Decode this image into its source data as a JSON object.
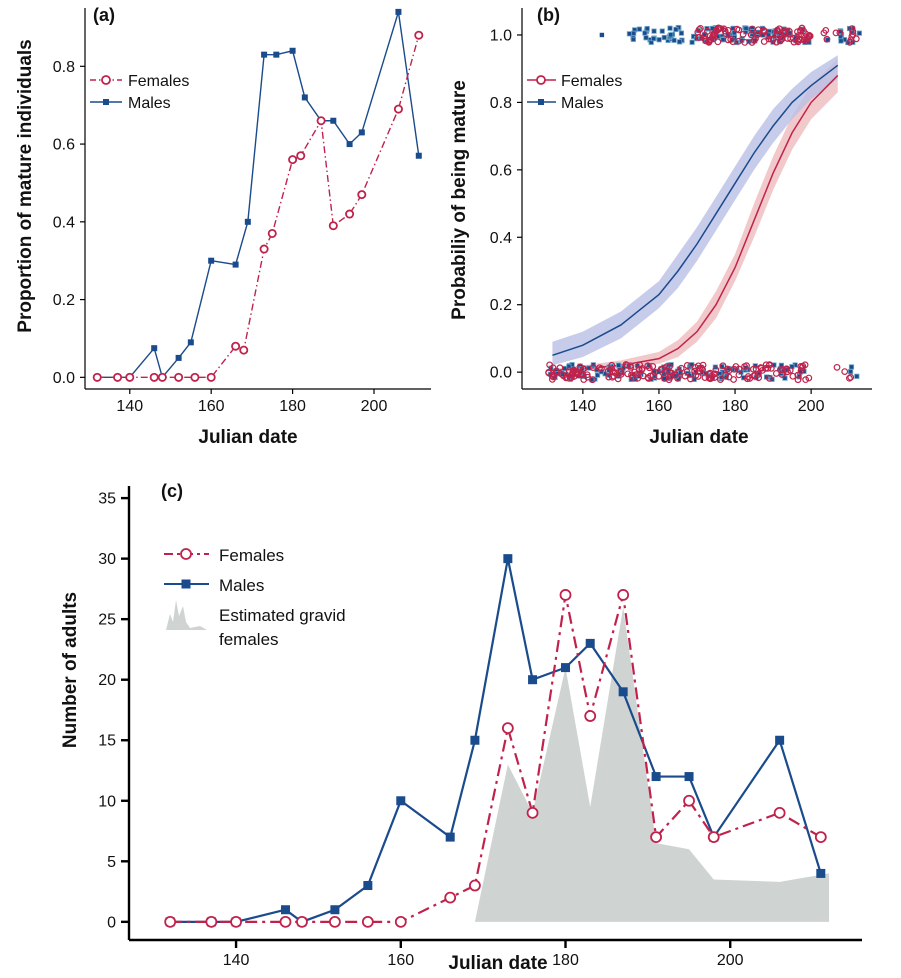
{
  "colors": {
    "females": "#c0224c",
    "males": "#1a4b8c",
    "gravid": "#cfd4d3",
    "males_ci": "#b9bfe6",
    "females_ci": "#efbcbe",
    "males_jitter": "#6fa8c8"
  },
  "chart_data": [
    {
      "panel": "(a)",
      "type": "line",
      "xlabel": "Julian date",
      "ylabel": "Proportion of mature individuals",
      "xlim": [
        129,
        214
      ],
      "ylim": [
        -0.03,
        0.95
      ],
      "xticks": [
        140,
        160,
        180,
        200
      ],
      "yticks": [
        "0.0",
        "0.2",
        "0.4",
        "0.6",
        "0.8"
      ],
      "legend_position": "upper-left",
      "series": [
        {
          "name": "Females",
          "key": "females",
          "style": "dashdot",
          "marker": "circle",
          "x": [
            132,
            137,
            140,
            146,
            148,
            152,
            156,
            160,
            166,
            168,
            173,
            175,
            180,
            182,
            187,
            190,
            194,
            197,
            206,
            211
          ],
          "y": [
            0,
            0,
            0,
            0,
            0,
            0,
            0,
            0,
            0.08,
            0.07,
            0.33,
            0.37,
            0.56,
            0.57,
            0.66,
            0.39,
            0.42,
            0.47,
            0.69,
            0.88
          ]
        },
        {
          "name": "Males",
          "key": "males",
          "style": "solid",
          "marker": "square",
          "x": [
            132,
            137,
            140,
            146,
            148,
            152,
            155,
            160,
            166,
            169,
            173,
            176,
            180,
            183,
            187,
            190,
            194,
            197,
            206,
            211
          ],
          "y": [
            0,
            0,
            0,
            0.075,
            0,
            0.05,
            0.09,
            0.3,
            0.29,
            0.4,
            0.83,
            0.83,
            0.84,
            0.72,
            0.66,
            0.66,
            0.6,
            0.63,
            0.94,
            0.57
          ]
        }
      ]
    },
    {
      "panel": "(b)",
      "type": "line",
      "xlabel": "Julian date",
      "ylabel": "Probabiliy of being mature",
      "xlim": [
        124,
        216
      ],
      "ylim": [
        -0.05,
        1.08
      ],
      "xticks": [
        140,
        160,
        180,
        200
      ],
      "yticks": [
        "0.0",
        "0.2",
        "0.4",
        "0.6",
        "0.8",
        "1.0"
      ],
      "legend_position": "upper-left",
      "series": [
        {
          "name": "Females",
          "key": "females",
          "x": [
            132,
            140,
            150,
            160,
            165,
            170,
            175,
            180,
            185,
            190,
            195,
            200,
            207
          ],
          "y": [
            0.005,
            0.01,
            0.02,
            0.04,
            0.07,
            0.12,
            0.2,
            0.31,
            0.45,
            0.59,
            0.71,
            0.8,
            0.88
          ],
          "ci_low": [
            0.0,
            0.004,
            0.01,
            0.025,
            0.045,
            0.09,
            0.16,
            0.27,
            0.4,
            0.54,
            0.66,
            0.75,
            0.83
          ],
          "ci_high": [
            0.01,
            0.02,
            0.035,
            0.06,
            0.095,
            0.15,
            0.24,
            0.35,
            0.5,
            0.64,
            0.76,
            0.85,
            0.93
          ]
        },
        {
          "name": "Males",
          "key": "males",
          "x": [
            132,
            140,
            150,
            160,
            165,
            170,
            175,
            180,
            185,
            190,
            195,
            200,
            207
          ],
          "y": [
            0.05,
            0.08,
            0.14,
            0.23,
            0.3,
            0.38,
            0.47,
            0.56,
            0.65,
            0.73,
            0.8,
            0.85,
            0.91
          ],
          "ci_low": [
            0.02,
            0.045,
            0.1,
            0.19,
            0.25,
            0.33,
            0.42,
            0.51,
            0.6,
            0.68,
            0.75,
            0.81,
            0.87
          ],
          "ci_high": [
            0.09,
            0.12,
            0.18,
            0.27,
            0.35,
            0.43,
            0.52,
            0.61,
            0.7,
            0.78,
            0.84,
            0.89,
            0.94
          ]
        }
      ]
    },
    {
      "panel": "(c)",
      "type": "line",
      "xlabel": "Julian date",
      "ylabel": "Number of adults",
      "xlim": [
        127,
        216
      ],
      "ylim": [
        -1.5,
        36
      ],
      "xticks": [
        140,
        160,
        180,
        200
      ],
      "yticks": [
        0,
        5,
        10,
        15,
        20,
        25,
        30,
        35
      ],
      "legend_position": "upper-left",
      "series": [
        {
          "name": "Females",
          "key": "females",
          "style": "dashdot",
          "marker": "circle",
          "x": [
            132,
            137,
            140,
            146,
            148,
            152,
            156,
            160,
            166,
            169,
            173,
            176,
            180,
            183,
            187,
            191,
            195,
            198,
            206,
            211
          ],
          "y": [
            0,
            0,
            0,
            0,
            0,
            0,
            0,
            0,
            2,
            3,
            16,
            9,
            27,
            17,
            27,
            7,
            10,
            7,
            9,
            7
          ]
        },
        {
          "name": "Males",
          "key": "males",
          "style": "solid",
          "marker": "square",
          "x": [
            132,
            137,
            140,
            146,
            148,
            152,
            156,
            160,
            166,
            169,
            173,
            176,
            180,
            183,
            187,
            191,
            195,
            198,
            206,
            211
          ],
          "y": [
            0,
            0,
            0,
            1,
            0,
            1,
            3,
            10,
            7,
            15,
            30,
            20,
            21,
            23,
            19,
            12,
            12,
            7,
            15,
            4
          ]
        },
        {
          "name": "Estimated gravid females",
          "label_lines": [
            "Estimated gravid",
            "females"
          ],
          "key": "gravid",
          "type": "area",
          "x": [
            169,
            173,
            176,
            180,
            183,
            187,
            191,
            195,
            198,
            206,
            212
          ],
          "y": [
            0,
            13,
            9,
            21,
            9.5,
            26,
            6.5,
            6,
            3.5,
            3.3,
            4
          ]
        }
      ]
    }
  ]
}
